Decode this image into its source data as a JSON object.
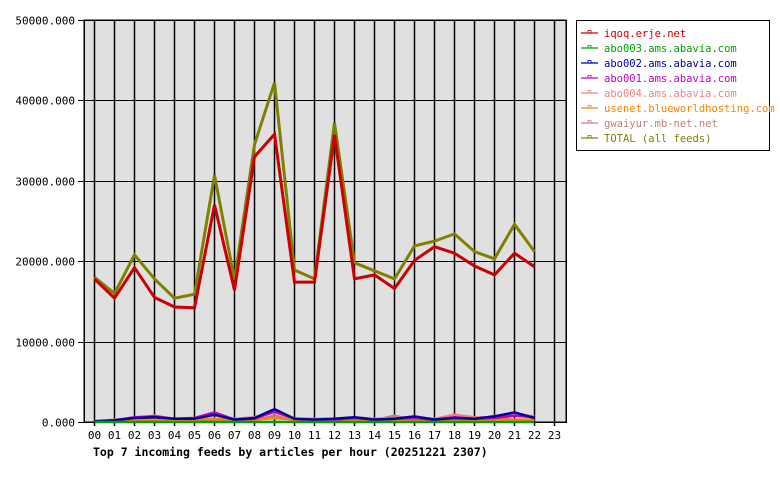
{
  "chart_data": {
    "type": "line",
    "title": "Top 7 incoming feeds by articles per hour (20251221 2307)",
    "xlabel": "",
    "ylabel": "",
    "ylim": [
      0,
      50000
    ],
    "grid": true,
    "legend_position": "right",
    "y_ticks": [
      "0.000",
      "10000.000",
      "20000.000",
      "30000.000",
      "40000.000",
      "50000.000"
    ],
    "categories": [
      "00",
      "01",
      "02",
      "03",
      "04",
      "05",
      "06",
      "07",
      "08",
      "09",
      "10",
      "11",
      "12",
      "13",
      "14",
      "15",
      "16",
      "17",
      "18",
      "19",
      "20",
      "21",
      "22",
      "23"
    ],
    "series": [
      {
        "name": "iqoq.erje.net",
        "color": "#cc0000",
        "values": [
          17800,
          15400,
          19200,
          15500,
          14300,
          14200,
          27000,
          16400,
          33000,
          35800,
          17400,
          17400,
          35700,
          17800,
          18300,
          16600,
          20100,
          21800,
          21000,
          19400,
          18300,
          21000,
          19300,
          null
        ]
      },
      {
        "name": "abo003.ams.abavia.com",
        "color": "#00a000",
        "values": [
          0,
          0,
          0,
          0,
          0,
          0,
          0,
          0,
          0,
          0,
          0,
          0,
          0,
          0,
          0,
          0,
          0,
          0,
          0,
          0,
          0,
          0,
          0,
          null
        ]
      },
      {
        "name": "abo002.ams.abavia.com",
        "color": "#0000a0",
        "values": [
          100,
          200,
          500,
          600,
          400,
          400,
          900,
          300,
          500,
          1600,
          400,
          300,
          400,
          600,
          300,
          400,
          700,
          300,
          500,
          400,
          700,
          1200,
          500,
          null
        ]
      },
      {
        "name": "abo001.ams.abavia.com",
        "color": "#c000c0",
        "values": [
          100,
          200,
          600,
          700,
          400,
          500,
          1200,
          300,
          400,
          1300,
          400,
          300,
          300,
          500,
          300,
          400,
          500,
          300,
          600,
          400,
          500,
          800,
          600,
          null
        ]
      },
      {
        "name": "abo004.ams.abavia.com",
        "color": "#f08080",
        "values": [
          100,
          300,
          500,
          800,
          400,
          500,
          900,
          400,
          600,
          1200,
          400,
          400,
          400,
          600,
          400,
          500,
          600,
          400,
          900,
          600,
          600,
          1000,
          700,
          null
        ]
      },
      {
        "name": "usenet.blueworldhosting.com",
        "color": "#ff8000",
        "values": [
          100,
          200,
          300,
          300,
          300,
          300,
          400,
          300,
          300,
          500,
          300,
          300,
          300,
          300,
          300,
          300,
          300,
          300,
          300,
          300,
          300,
          300,
          300,
          null
        ]
      },
      {
        "name": "gwaiyur.mb-net.net",
        "color": "#c08080",
        "values": [
          100,
          100,
          200,
          200,
          200,
          200,
          300,
          200,
          200,
          800,
          200,
          200,
          200,
          200,
          200,
          800,
          200,
          200,
          200,
          200,
          800,
          200,
          200,
          null
        ]
      },
      {
        "name": "TOTAL (all feeds)",
        "color": "#808000",
        "values": [
          18000,
          16000,
          20800,
          17800,
          15400,
          15900,
          30700,
          17700,
          34500,
          42200,
          18900,
          17800,
          37200,
          19800,
          18800,
          17800,
          21900,
          22500,
          23400,
          21200,
          20300,
          24600,
          21200,
          null
        ]
      }
    ]
  },
  "legend": {
    "items": [
      {
        "label": "iqoq.erje.net",
        "color": "#cc0000"
      },
      {
        "label": "abo003.ams.abavia.com",
        "color": "#00a000"
      },
      {
        "label": "abo002.ams.abavia.com",
        "color": "#0000a0"
      },
      {
        "label": "abo001.ams.abavia.com",
        "color": "#c000c0"
      },
      {
        "label": "abo004.ams.abavia.com",
        "color": "#f08080"
      },
      {
        "label": "usenet.blueworldhosting.com",
        "color": "#ff8000"
      },
      {
        "label": "gwaiyur.mb-net.net",
        "color": "#c08080"
      },
      {
        "label": "TOTAL (all feeds)",
        "color": "#808000"
      }
    ]
  },
  "colors": {
    "plot_background": "#e0e0e0",
    "grid": "#000000",
    "page_background": "#ffffff"
  }
}
